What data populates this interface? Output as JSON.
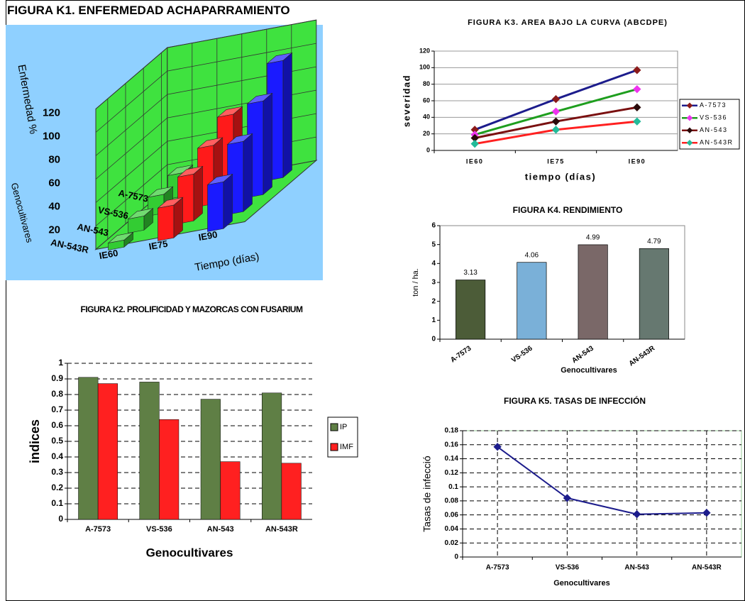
{
  "chart_data": [
    {
      "type": "bar3d",
      "title": "FIGURA K1. ENFERMEDAD ACHAPARRAMIENTO",
      "ylabel": "Enfermedad %",
      "depth_label": "Genocultivares",
      "xlabel": "Tiempo (días)",
      "categories": [
        "A-7573",
        "VS-536",
        "AN-543",
        "AN-543R"
      ],
      "series": [
        {
          "name": "IE60",
          "color": "#33cc33",
          "values": [
            20,
            16,
            12,
            6
          ]
        },
        {
          "name": "IE75",
          "color": "#ff1a1a",
          "values": [
            62,
            50,
            40,
            28
          ]
        },
        {
          "name": "IE90",
          "color": "#1a1aff",
          "values": [
            100,
            80,
            60,
            40
          ]
        }
      ],
      "ylim": [
        0,
        120
      ],
      "yticks": [
        20,
        40,
        60,
        80,
        100,
        120
      ],
      "grid": true
    },
    {
      "type": "bar",
      "title": "FIGURA K2.  PROLIFICIDAD Y MAZORCAS CON FUSARIUM",
      "ylabel": "indices",
      "xlabel": "Genocultivares",
      "categories": [
        "A-7573",
        "VS-536",
        "AN-543",
        "AN-543R"
      ],
      "series": [
        {
          "name": "IP",
          "color": "#5f7f45",
          "values": [
            0.91,
            0.88,
            0.77,
            0.81
          ]
        },
        {
          "name": "IMF",
          "color": "#ff2020",
          "values": [
            0.87,
            0.64,
            0.37,
            0.36
          ]
        }
      ],
      "ylim": [
        0,
        1
      ],
      "yticks": [
        0,
        0.1,
        0.2,
        0.3,
        0.4,
        0.5,
        0.6,
        0.7,
        0.8,
        0.9,
        1
      ],
      "grid": true,
      "legend": "right"
    },
    {
      "type": "line",
      "title": "FIGURA K3. AREA BAJO LA CURVA  (ABCDPE)",
      "ylabel": "severidad",
      "xlabel": "tiempo (días)",
      "categories": [
        "IE60",
        "IE75",
        "IE90"
      ],
      "series": [
        {
          "name": "A-7573",
          "color": "#1c1c8c",
          "marker_color": "#8b1a1a",
          "values": [
            25,
            62,
            97
          ]
        },
        {
          "name": "VS-536",
          "color": "#1e9e1e",
          "marker_color": "#ee33ee",
          "values": [
            19,
            47,
            74
          ]
        },
        {
          "name": "AN-543",
          "color": "#7a1010",
          "marker_color": "#2a0a0a",
          "values": [
            15,
            35,
            52
          ]
        },
        {
          "name": "AN-543R",
          "color": "#ff2020",
          "marker_color": "#22bb99",
          "values": [
            8,
            25,
            35
          ]
        }
      ],
      "ylim": [
        0,
        120
      ],
      "yticks": [
        0,
        20,
        40,
        60,
        80,
        100,
        120
      ],
      "grid": true,
      "legend": "right"
    },
    {
      "type": "bar",
      "title": "FIGURA K4. RENDIMIENTO",
      "ylabel": "ton / ha.",
      "xlabel": "Genocultivares",
      "categories": [
        "A-7573",
        "VS-536",
        "AN-543",
        "AN-543R"
      ],
      "values": [
        3.13,
        4.06,
        4.99,
        4.79
      ],
      "colors": [
        "#4c5c38",
        "#7ab0d8",
        "#7a6868",
        "#667870"
      ],
      "ylim": [
        0,
        6
      ],
      "yticks": [
        0,
        1,
        2,
        3,
        4,
        5,
        6
      ],
      "grid": false
    },
    {
      "type": "line",
      "title": "FIGURA K5. TASAS DE INFECCIÓN",
      "ylabel": "Tasas de infecció",
      "xlabel": "Genocultivares",
      "categories": [
        "A-7573",
        "VS-536",
        "AN-543",
        "AN-543R"
      ],
      "values": [
        0.157,
        0.084,
        0.061,
        0.063
      ],
      "color": "#1c1c8c",
      "ylim": [
        0,
        0.18
      ],
      "yticks": [
        0,
        0.02,
        0.04,
        0.06,
        0.08,
        0.1,
        0.12,
        0.14,
        0.16,
        0.18
      ],
      "grid": true
    }
  ]
}
